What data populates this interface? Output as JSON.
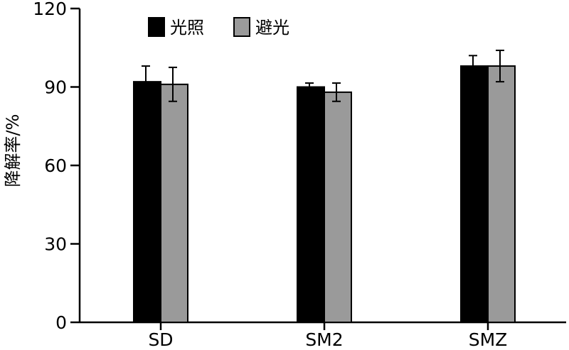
{
  "chart_data": {
    "type": "bar",
    "categories": [
      "SD",
      "SM2",
      "SMZ"
    ],
    "series": [
      {
        "name": "光照",
        "values": [
          92,
          90,
          98
        ],
        "errors": [
          6,
          1.5,
          4
        ],
        "color": "#000000"
      },
      {
        "name": "避光",
        "values": [
          91,
          88,
          98
        ],
        "errors": [
          6.5,
          3.5,
          6
        ],
        "color": "#9a9a9a"
      }
    ],
    "title": "",
    "xlabel": "",
    "ylabel": "降解率/%",
    "ylim": [
      0,
      120
    ],
    "yticks": [
      0,
      30,
      60,
      90,
      120
    ],
    "grid": false,
    "legend_position": "top-left",
    "error_bars": true
  }
}
